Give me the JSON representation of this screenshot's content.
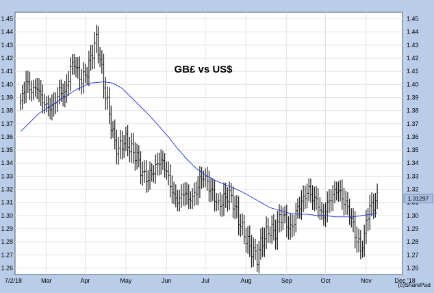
{
  "chart_data": {
    "type": "ohlc",
    "title": "GB£ vs US$",
    "credit": "(c)SharePad",
    "xlabel": "",
    "ylabel": "",
    "ylim": [
      1.255,
      1.455
    ],
    "y_ticks": [
      1.26,
      1.27,
      1.28,
      1.29,
      1.3,
      1.31,
      1.32,
      1.33,
      1.34,
      1.35,
      1.36,
      1.37,
      1.38,
      1.39,
      1.4,
      1.41,
      1.42,
      1.43,
      1.44,
      1.45
    ],
    "y_tick_labels": [
      "1.26",
      "1.27",
      "1.28",
      "1.29",
      "1.30",
      "1.31",
      "1.32",
      "1.33",
      "1.34",
      "1.35",
      "1.36",
      "1.37",
      "1.38",
      "1.39",
      "1.40",
      "1.41",
      "1.42",
      "1.43",
      "1.44",
      "1.45"
    ],
    "x_labels": [
      {
        "label": "7/2/18",
        "idx": 0
      },
      {
        "label": "Mar",
        "idx": 14
      },
      {
        "label": "Apr",
        "idx": 35
      },
      {
        "label": "May",
        "idx": 57
      },
      {
        "label": "Jun",
        "idx": 79
      },
      {
        "label": "Jul",
        "idx": 100
      },
      {
        "label": "Aug",
        "idx": 122
      },
      {
        "label": "Sep",
        "idx": 144
      },
      {
        "label": "Oct",
        "idx": 165
      },
      {
        "label": "Nov",
        "idx": 187
      },
      {
        "label": "Dec '18",
        "idx": 208
      }
    ],
    "last_price_label": "1.31297",
    "last_price": 1.313,
    "grid": true,
    "colors": {
      "background": "#b9cde9",
      "plot_background": "#ffffff",
      "grid": "#e3e3e3",
      "price_bars": "#1a1a1a",
      "moving_average": "#2a3fd6",
      "price_marker": "#a9c0e0"
    },
    "price_anchors": [
      [
        0,
        1.386
      ],
      [
        3,
        1.402
      ],
      [
        6,
        1.395
      ],
      [
        9,
        1.398
      ],
      [
        12,
        1.387
      ],
      [
        15,
        1.382
      ],
      [
        18,
        1.384
      ],
      [
        21,
        1.395
      ],
      [
        24,
        1.392
      ],
      [
        27,
        1.412
      ],
      [
        29,
        1.417
      ],
      [
        31,
        1.409
      ],
      [
        33,
        1.403
      ],
      [
        36,
        1.41
      ],
      [
        38,
        1.42
      ],
      [
        40,
        1.43
      ],
      [
        41,
        1.434
      ],
      [
        43,
        1.42
      ],
      [
        45,
        1.4
      ],
      [
        47,
        1.385
      ],
      [
        49,
        1.37
      ],
      [
        51,
        1.355
      ],
      [
        53,
        1.35
      ],
      [
        55,
        1.355
      ],
      [
        57,
        1.357
      ],
      [
        59,
        1.352
      ],
      [
        61,
        1.348
      ],
      [
        63,
        1.345
      ],
      [
        65,
        1.335
      ],
      [
        67,
        1.33
      ],
      [
        69,
        1.328
      ],
      [
        71,
        1.333
      ],
      [
        73,
        1.336
      ],
      [
        75,
        1.342
      ],
      [
        77,
        1.34
      ],
      [
        79,
        1.334
      ],
      [
        81,
        1.323
      ],
      [
        83,
        1.315
      ],
      [
        85,
        1.311
      ],
      [
        87,
        1.315
      ],
      [
        89,
        1.318
      ],
      [
        91,
        1.312
      ],
      [
        93,
        1.314
      ],
      [
        95,
        1.318
      ],
      [
        97,
        1.327
      ],
      [
        99,
        1.33
      ],
      [
        101,
        1.325
      ],
      [
        103,
        1.319
      ],
      [
        105,
        1.314
      ],
      [
        107,
        1.307
      ],
      [
        109,
        1.311
      ],
      [
        111,
        1.314
      ],
      [
        113,
        1.316
      ],
      [
        115,
        1.31
      ],
      [
        117,
        1.302
      ],
      [
        119,
        1.293
      ],
      [
        121,
        1.286
      ],
      [
        123,
        1.279
      ],
      [
        125,
        1.274
      ],
      [
        127,
        1.27
      ],
      [
        128,
        1.268
      ],
      [
        130,
        1.278
      ],
      [
        132,
        1.284
      ],
      [
        134,
        1.288
      ],
      [
        136,
        1.289
      ],
      [
        138,
        1.287
      ],
      [
        140,
        1.298
      ],
      [
        142,
        1.3
      ],
      [
        144,
        1.294
      ],
      [
        146,
        1.289
      ],
      [
        148,
        1.296
      ],
      [
        150,
        1.306
      ],
      [
        152,
        1.31
      ],
      [
        154,
        1.315
      ],
      [
        156,
        1.32
      ],
      [
        158,
        1.313
      ],
      [
        160,
        1.312
      ],
      [
        162,
        1.304
      ],
      [
        164,
        1.299
      ],
      [
        166,
        1.309
      ],
      [
        168,
        1.313
      ],
      [
        170,
        1.318
      ],
      [
        172,
        1.32
      ],
      [
        174,
        1.313
      ],
      [
        176,
        1.309
      ],
      [
        178,
        1.302
      ],
      [
        180,
        1.292
      ],
      [
        182,
        1.281
      ],
      [
        184,
        1.275
      ],
      [
        186,
        1.282
      ],
      [
        187,
        1.296
      ],
      [
        188,
        1.302
      ],
      [
        190,
        1.307
      ],
      [
        192,
        1.311
      ],
      [
        193,
        1.313
      ]
    ],
    "moving_average": [
      [
        0,
        1.364
      ],
      [
        10,
        1.378
      ],
      [
        20,
        1.387
      ],
      [
        30,
        1.396
      ],
      [
        38,
        1.401
      ],
      [
        45,
        1.402
      ],
      [
        50,
        1.401
      ],
      [
        55,
        1.397
      ],
      [
        60,
        1.39
      ],
      [
        65,
        1.383
      ],
      [
        70,
        1.376
      ],
      [
        75,
        1.368
      ],
      [
        80,
        1.36
      ],
      [
        85,
        1.351
      ],
      [
        90,
        1.343
      ],
      [
        95,
        1.336
      ],
      [
        100,
        1.331
      ],
      [
        105,
        1.327
      ],
      [
        110,
        1.324
      ],
      [
        115,
        1.321
      ],
      [
        120,
        1.318
      ],
      [
        125,
        1.314
      ],
      [
        130,
        1.31
      ],
      [
        135,
        1.306
      ],
      [
        140,
        1.304
      ],
      [
        145,
        1.302
      ],
      [
        150,
        1.301
      ],
      [
        155,
        1.301
      ],
      [
        160,
        1.3
      ],
      [
        165,
        1.3
      ],
      [
        170,
        1.299
      ],
      [
        175,
        1.299
      ],
      [
        180,
        1.299
      ],
      [
        185,
        1.3
      ],
      [
        190,
        1.301
      ],
      [
        193,
        1.302
      ]
    ]
  }
}
